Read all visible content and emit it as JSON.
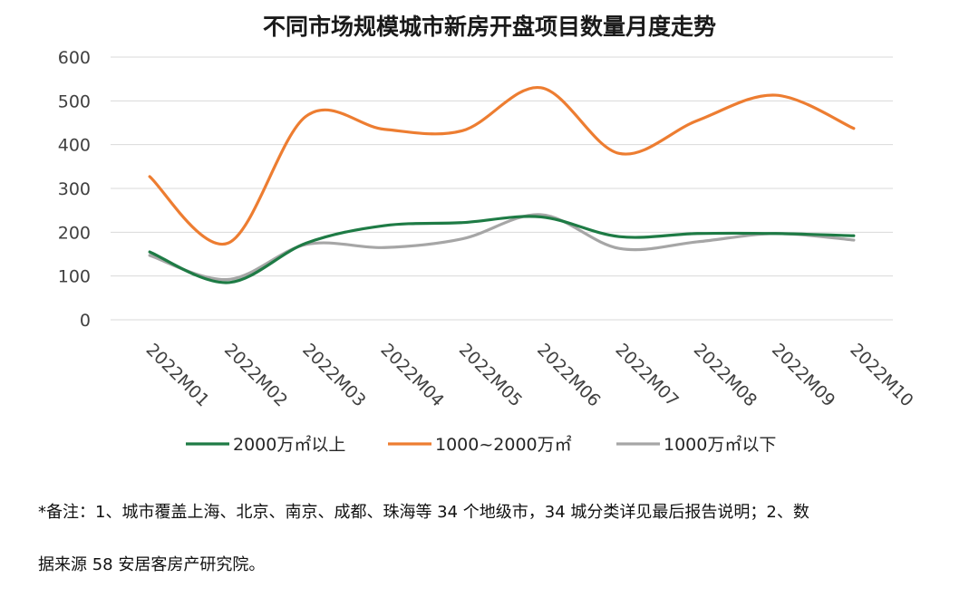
{
  "chart_data": {
    "type": "line",
    "title": "不同市场规模城市新房开盘项目数量月度走势",
    "categories": [
      "2022M01",
      "2022M02",
      "2022M03",
      "2022M04",
      "2022M05",
      "2022M06",
      "2022M07",
      "2022M08",
      "2022M09",
      "2022M10"
    ],
    "y_ticks": [
      0,
      100,
      200,
      300,
      400,
      500,
      600
    ],
    "ylim": [
      0,
      600
    ],
    "grid": true,
    "legend_position": "bottom",
    "smooth": true,
    "series": [
      {
        "name": "2000万㎡以上",
        "color": "#1e7b45",
        "values": [
          155,
          85,
          175,
          215,
          222,
          235,
          190,
          197,
          197,
          192
        ]
      },
      {
        "name": "1000~2000万㎡",
        "color": "#ed7d31",
        "values": [
          327,
          175,
          465,
          435,
          432,
          530,
          380,
          455,
          513,
          437
        ]
      },
      {
        "name": "1000万㎡以下",
        "color": "#a6a6a6",
        "values": [
          147,
          92,
          172,
          165,
          185,
          240,
          163,
          178,
          197,
          182
        ]
      }
    ]
  },
  "notes": {
    "line1": "*备注：1、城市覆盖上海、北京、南京、成都、珠海等 34 个地级市，34 城分类详见最后报告说明；2、数",
    "line2": "据来源 58 安居客房产研究院。"
  }
}
